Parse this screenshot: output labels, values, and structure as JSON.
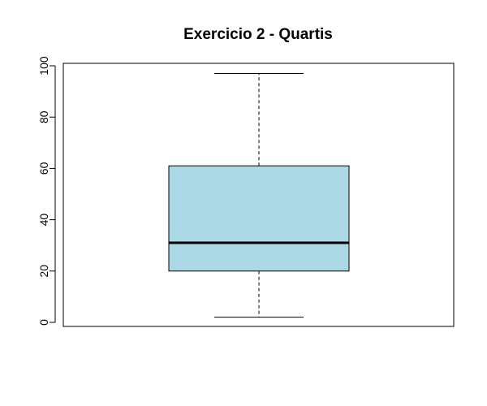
{
  "chart_data": {
    "type": "boxplot",
    "title": "Exercicio 2 - Quartis",
    "xlabel": "",
    "ylabel": "",
    "ylim": [
      0,
      100
    ],
    "yticks": [
      0,
      20,
      40,
      60,
      80,
      100
    ],
    "ytick_labels": [
      "0",
      "20",
      "40",
      "60",
      "80",
      "100"
    ],
    "grid": false,
    "legend": "none",
    "box": {
      "min": 2,
      "q1": 20,
      "median": 31,
      "q3": 61,
      "max": 97
    },
    "colors": {
      "box_fill": "#add8e6",
      "stroke": "#000000"
    }
  }
}
